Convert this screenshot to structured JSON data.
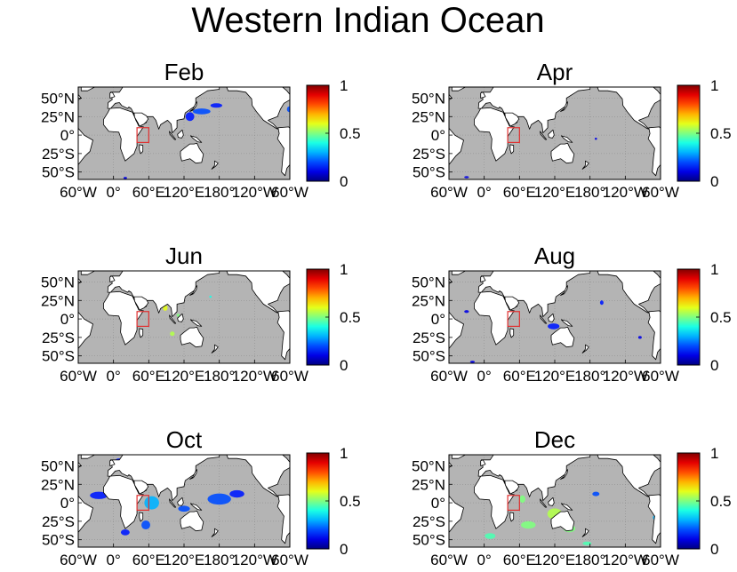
{
  "figure": {
    "title": "Western Indian Ocean"
  },
  "colorbar": {
    "ticks": [
      "0",
      "0.5",
      "1"
    ],
    "colormap": "jet"
  },
  "axes": {
    "lat_ticks": [
      "50°S",
      "25°S",
      "0°",
      "25°N",
      "50°N"
    ],
    "lon_ticks": [
      "60°W",
      "0°",
      "60°E",
      "120°E",
      "180°",
      "120°W",
      "60°W"
    ],
    "land_color": "#ffffff",
    "ocean_color": "#b4b4b4",
    "region_box_color": "#e03030"
  },
  "chart_data": [
    {
      "type": "heatmap",
      "title": "Feb",
      "region_box": {
        "lon": [
          40,
          60
        ],
        "lat": [
          -10,
          10
        ]
      },
      "xlim": [
        -60,
        300
      ],
      "ylim": [
        -60,
        65
      ],
      "blobs": [
        {
          "lon": 130,
          "lat": 25,
          "w": 15,
          "h": 12,
          "v": 0.15
        },
        {
          "lon": 150,
          "lat": 32,
          "w": 30,
          "h": 8,
          "v": 0.2
        },
        {
          "lon": 175,
          "lat": 40,
          "w": 20,
          "h": 6,
          "v": 0.15
        },
        {
          "lon": 300,
          "lat": 35,
          "w": 10,
          "h": 8,
          "v": 0.2
        },
        {
          "lon": 20,
          "lat": -58,
          "w": 6,
          "h": 3,
          "v": 0.1
        }
      ]
    },
    {
      "type": "heatmap",
      "title": "Apr",
      "region_box": {
        "lon": [
          40,
          60
        ],
        "lat": [
          -10,
          10
        ]
      },
      "xlim": [
        -60,
        300
      ],
      "ylim": [
        -60,
        65
      ],
      "blobs": [
        {
          "lon": 45,
          "lat": 17,
          "w": 6,
          "h": 8,
          "v": 0.3
        },
        {
          "lon": 33,
          "lat": -22,
          "w": 5,
          "h": 6,
          "v": 0.1
        },
        {
          "lon": 190,
          "lat": -5,
          "w": 4,
          "h": 3,
          "v": 0.1
        },
        {
          "lon": -30,
          "lat": -57,
          "w": 8,
          "h": 3,
          "v": 0.1
        }
      ]
    },
    {
      "type": "heatmap",
      "title": "Jun",
      "region_box": {
        "lon": [
          40,
          60
        ],
        "lat": [
          -10,
          10
        ]
      },
      "xlim": [
        -60,
        300
      ],
      "ylim": [
        -60,
        65
      ],
      "blobs": [
        {
          "lon": 88,
          "lat": 15,
          "w": 8,
          "h": 8,
          "v": 0.6
        },
        {
          "lon": 100,
          "lat": -20,
          "w": 8,
          "h": 6,
          "v": 0.55
        },
        {
          "lon": 110,
          "lat": 5,
          "w": 5,
          "h": 4,
          "v": 0.5
        },
        {
          "lon": 165,
          "lat": 30,
          "w": 4,
          "h": 3,
          "v": 0.4
        }
      ]
    },
    {
      "type": "heatmap",
      "title": "Aug",
      "region_box": {
        "lon": [
          40,
          60
        ],
        "lat": [
          -10,
          10
        ]
      },
      "xlim": [
        -60,
        300
      ],
      "ylim": [
        -60,
        65
      ],
      "blobs": [
        {
          "lon": -30,
          "lat": 10,
          "w": 8,
          "h": 4,
          "v": 0.1
        },
        {
          "lon": 118,
          "lat": -10,
          "w": 20,
          "h": 8,
          "v": 0.15
        },
        {
          "lon": 200,
          "lat": 22,
          "w": 6,
          "h": 6,
          "v": 0.15
        },
        {
          "lon": 265,
          "lat": -25,
          "w": 6,
          "h": 4,
          "v": 0.1
        },
        {
          "lon": -20,
          "lat": -58,
          "w": 8,
          "h": 3,
          "v": 0.1
        }
      ]
    },
    {
      "type": "heatmap",
      "title": "Oct",
      "region_box": {
        "lon": [
          40,
          60
        ],
        "lat": [
          -10,
          10
        ]
      },
      "xlim": [
        -60,
        300
      ],
      "ylim": [
        -60,
        65
      ],
      "blobs": [
        {
          "lon": 10,
          "lat": 57,
          "w": 15,
          "h": 6,
          "v": 0.15
        },
        {
          "lon": -25,
          "lat": 10,
          "w": 30,
          "h": 10,
          "v": 0.15
        },
        {
          "lon": 65,
          "lat": 0,
          "w": 25,
          "h": 18,
          "v": 0.3
        },
        {
          "lon": 55,
          "lat": -30,
          "w": 15,
          "h": 12,
          "v": 0.2
        },
        {
          "lon": 20,
          "lat": -40,
          "w": 15,
          "h": 8,
          "v": 0.15
        },
        {
          "lon": 120,
          "lat": -8,
          "w": 20,
          "h": 8,
          "v": 0.2
        },
        {
          "lon": 180,
          "lat": 5,
          "w": 40,
          "h": 15,
          "v": 0.2
        },
        {
          "lon": 210,
          "lat": 12,
          "w": 25,
          "h": 10,
          "v": 0.15
        }
      ]
    },
    {
      "type": "heatmap",
      "title": "Dec",
      "region_box": {
        "lon": [
          40,
          60
        ],
        "lat": [
          -10,
          10
        ]
      },
      "xlim": [
        -60,
        300
      ],
      "ylim": [
        -60,
        65
      ],
      "blobs": [
        {
          "lon": 65,
          "lat": 5,
          "w": 10,
          "h": 10,
          "v": 0.5
        },
        {
          "lon": 10,
          "lat": -45,
          "w": 18,
          "h": 8,
          "v": 0.45
        },
        {
          "lon": 75,
          "lat": -30,
          "w": 25,
          "h": 10,
          "v": 0.5
        },
        {
          "lon": 120,
          "lat": -15,
          "w": 25,
          "h": 15,
          "v": 0.55
        },
        {
          "lon": 145,
          "lat": -35,
          "w": 20,
          "h": 10,
          "v": 0.5
        },
        {
          "lon": 175,
          "lat": -55,
          "w": 15,
          "h": 5,
          "v": 0.45
        },
        {
          "lon": 190,
          "lat": 12,
          "w": 12,
          "h": 6,
          "v": 0.2
        },
        {
          "lon": 290,
          "lat": -20,
          "w": 6,
          "h": 6,
          "v": 0.3
        }
      ]
    }
  ]
}
